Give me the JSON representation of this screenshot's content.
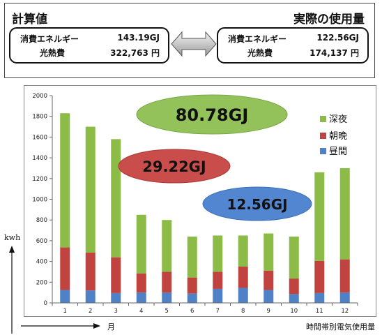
{
  "comparison": {
    "calc_title": "計算値",
    "actual_title": "実際の使用量",
    "calc": {
      "energy_label": "消費エネルギー",
      "energy_value": "143.19GJ",
      "cost_label": "光熱費",
      "cost_value": "322,763 円"
    },
    "actual": {
      "energy_label": "消費エネルギー",
      "energy_value": "122.56GJ",
      "cost_label": "光熱費",
      "cost_value": "174,137 円"
    }
  },
  "colors": {
    "night": "#8DBB47",
    "morning_evening": "#C0433F",
    "daytime": "#4E81C6"
  },
  "annotations": {
    "night_total": "80.78GJ",
    "morning_evening_total": "29.22GJ",
    "daytime_total": "12.56GJ"
  },
  "axis_unit": "kwh",
  "footer": {
    "month_label": "月",
    "caption": "時間帯別電気使用量"
  },
  "chart_data": {
    "type": "bar",
    "stacked": true,
    "categories": [
      "1",
      "2",
      "3",
      "4",
      "5",
      "6",
      "7",
      "8",
      "9",
      "10",
      "11",
      "12"
    ],
    "series": [
      {
        "name": "昼間",
        "values": [
          125,
          120,
          95,
          100,
          100,
          90,
          135,
          145,
          125,
          85,
          95,
          100
        ]
      },
      {
        "name": "朝晩",
        "values": [
          410,
          365,
          345,
          185,
          200,
          155,
          165,
          205,
          185,
          150,
          310,
          320
        ]
      },
      {
        "name": "深夜",
        "values": [
          1295,
          1215,
          1140,
          565,
          500,
          395,
          350,
          300,
          360,
          405,
          855,
          880
        ]
      }
    ],
    "ylim": [
      0,
      2000
    ],
    "yticks": [
      0,
      200,
      400,
      600,
      800,
      1000,
      1200,
      1400,
      1600,
      1800,
      2000
    ],
    "ylabel": "kwh",
    "xlabel": "月",
    "grid": false,
    "legend": {
      "position": "right",
      "entries": [
        "深夜",
        "朝晩",
        "昼間"
      ]
    }
  }
}
